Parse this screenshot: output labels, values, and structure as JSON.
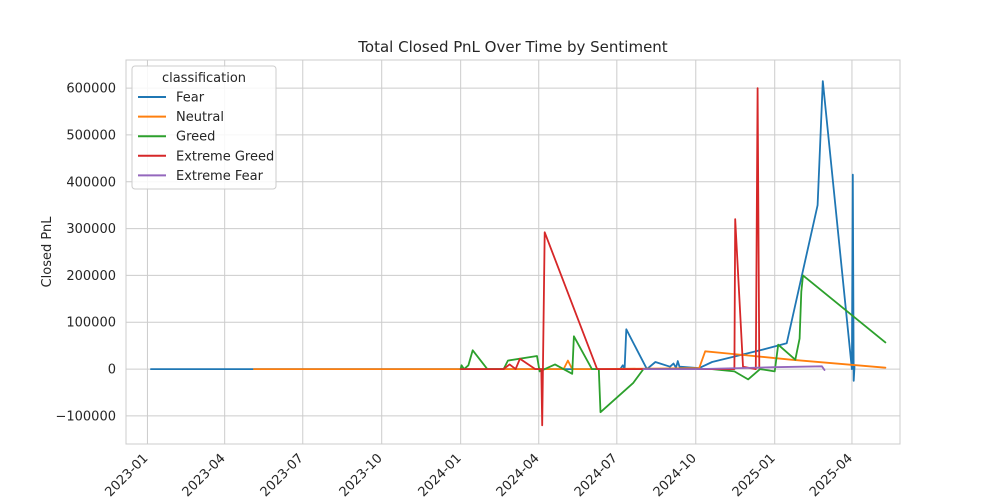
{
  "chart_data": {
    "type": "line",
    "title": "Total Closed PnL Over Time by Sentiment",
    "xlabel": "",
    "ylabel": "Closed PnL",
    "xlim": [
      "2022-12-07",
      "2025-05-27"
    ],
    "ylim": [
      -160000,
      660000
    ],
    "x_ticks": [
      "2023-01",
      "2023-04",
      "2023-07",
      "2023-10",
      "2024-01",
      "2024-04",
      "2024-07",
      "2024-10",
      "2025-01",
      "2025-04"
    ],
    "y_ticks": [
      -100000,
      0,
      100000,
      200000,
      300000,
      400000,
      500000,
      600000
    ],
    "y_tick_labels": [
      "−100000",
      "0",
      "100000",
      "200000",
      "300000",
      "400000",
      "500000",
      "600000"
    ],
    "grid": true,
    "legend": {
      "title": "classification",
      "placement": "top-left"
    },
    "series": [
      {
        "name": "Fear",
        "color": "#1f77b4",
        "points": [
          [
            "2023-01-05",
            0
          ],
          [
            "2023-05-05",
            0
          ],
          [
            "2023-07-01",
            0
          ],
          [
            "2023-10-01",
            0
          ],
          [
            "2024-01-01",
            0
          ],
          [
            "2024-07-05",
            0
          ],
          [
            "2024-07-08",
            8000
          ],
          [
            "2024-07-10",
            0
          ],
          [
            "2024-07-12",
            85000
          ],
          [
            "2024-08-05",
            0
          ],
          [
            "2024-08-15",
            15000
          ],
          [
            "2024-09-01",
            5000
          ],
          [
            "2024-09-05",
            12000
          ],
          [
            "2024-09-08",
            3000
          ],
          [
            "2024-09-10",
            17000
          ],
          [
            "2024-09-12",
            5000
          ],
          [
            "2024-10-05",
            2000
          ],
          [
            "2024-10-20",
            15000
          ],
          [
            "2024-12-15",
            40000
          ],
          [
            "2025-01-15",
            55000
          ],
          [
            "2025-02-20",
            350000
          ],
          [
            "2025-02-26",
            615000
          ],
          [
            "2025-04-01",
            0
          ],
          [
            "2025-04-02",
            415000
          ],
          [
            "2025-04-03",
            -25000
          ],
          [
            "2025-04-04",
            5000
          ]
        ]
      },
      {
        "name": "Neutral",
        "color": "#ff7f0e",
        "points": [
          [
            "2023-05-05",
            0
          ],
          [
            "2023-10-01",
            0
          ],
          [
            "2024-01-01",
            0
          ],
          [
            "2024-04-30",
            0
          ],
          [
            "2024-05-05",
            18000
          ],
          [
            "2024-05-10",
            0
          ],
          [
            "2024-06-05",
            0
          ],
          [
            "2024-10-05",
            2000
          ],
          [
            "2024-10-12",
            38000
          ],
          [
            "2024-11-15",
            32000
          ],
          [
            "2025-01-20",
            20000
          ],
          [
            "2025-05-10",
            3000
          ]
        ]
      },
      {
        "name": "Greed",
        "color": "#2ca02c",
        "points": [
          [
            "2024-01-01",
            0
          ],
          [
            "2024-01-02",
            8000
          ],
          [
            "2024-01-05",
            0
          ],
          [
            "2024-01-10",
            8000
          ],
          [
            "2024-01-15",
            40000
          ],
          [
            "2024-02-01",
            0
          ],
          [
            "2024-02-20",
            0
          ],
          [
            "2024-02-25",
            18000
          ],
          [
            "2024-03-30",
            28000
          ],
          [
            "2024-04-02",
            -5000
          ],
          [
            "2024-04-20",
            10000
          ],
          [
            "2024-05-10",
            -10000
          ],
          [
            "2024-05-12",
            70000
          ],
          [
            "2024-06-02",
            0
          ],
          [
            "2024-06-10",
            0
          ],
          [
            "2024-06-12",
            -92000
          ],
          [
            "2024-07-20",
            -30000
          ],
          [
            "2024-08-01",
            0
          ],
          [
            "2024-09-15",
            0
          ],
          [
            "2024-10-01",
            0
          ],
          [
            "2024-10-20",
            0
          ],
          [
            "2024-11-15",
            -5000
          ],
          [
            "2024-12-01",
            -22000
          ],
          [
            "2024-12-15",
            0
          ],
          [
            "2025-01-01",
            -5000
          ],
          [
            "2025-01-05",
            52000
          ],
          [
            "2025-01-25",
            20000
          ],
          [
            "2025-01-30",
            65000
          ],
          [
            "2025-02-01",
            165000
          ],
          [
            "2025-02-03",
            200000
          ],
          [
            "2025-05-10",
            57000
          ]
        ]
      },
      {
        "name": "Extreme Greed",
        "color": "#d62728",
        "points": [
          [
            "2024-01-01",
            0
          ],
          [
            "2024-02-20",
            0
          ],
          [
            "2024-02-27",
            10000
          ],
          [
            "2024-03-05",
            0
          ],
          [
            "2024-03-10",
            22000
          ],
          [
            "2024-03-28",
            0
          ],
          [
            "2024-04-04",
            0
          ],
          [
            "2024-04-05",
            -120000
          ],
          [
            "2024-04-08",
            292000
          ],
          [
            "2024-06-08",
            0
          ],
          [
            "2024-11-15",
            0
          ],
          [
            "2024-11-16",
            320000
          ],
          [
            "2024-11-25",
            5000
          ],
          [
            "2024-12-10",
            0
          ],
          [
            "2024-12-12",
            600000
          ],
          [
            "2024-12-14",
            2000
          ]
        ]
      },
      {
        "name": "Extreme Fear",
        "color": "#9467bd",
        "points": [
          [
            "2024-08-01",
            0
          ],
          [
            "2024-10-01",
            0
          ],
          [
            "2024-11-20",
            2000
          ],
          [
            "2025-01-01",
            4000
          ],
          [
            "2025-02-25",
            6000
          ],
          [
            "2025-02-28",
            -2000
          ]
        ]
      }
    ]
  }
}
